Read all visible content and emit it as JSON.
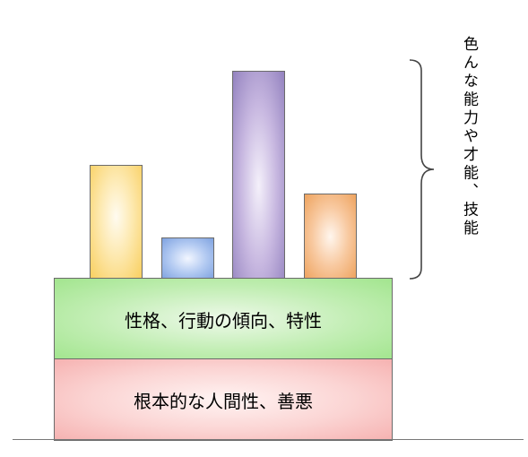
{
  "diagram": {
    "base_layer_label": "根本的な人間性、善悪",
    "middle_layer_label": "性格、行動の傾向、特性",
    "side_label": "色んな能力や才能、技能",
    "bars": [
      {
        "level": 0.55,
        "color": "#f9cf5f"
      },
      {
        "level": 0.2,
        "color": "#7ea2e0"
      },
      {
        "level": 1.0,
        "color": "#9382bf"
      },
      {
        "level": 0.41,
        "color": "#eea35e"
      }
    ],
    "colors": {
      "middle_layer": "#a2e58e",
      "base_layer": "#f6b2b1",
      "outline": "#6b6b6b"
    }
  }
}
